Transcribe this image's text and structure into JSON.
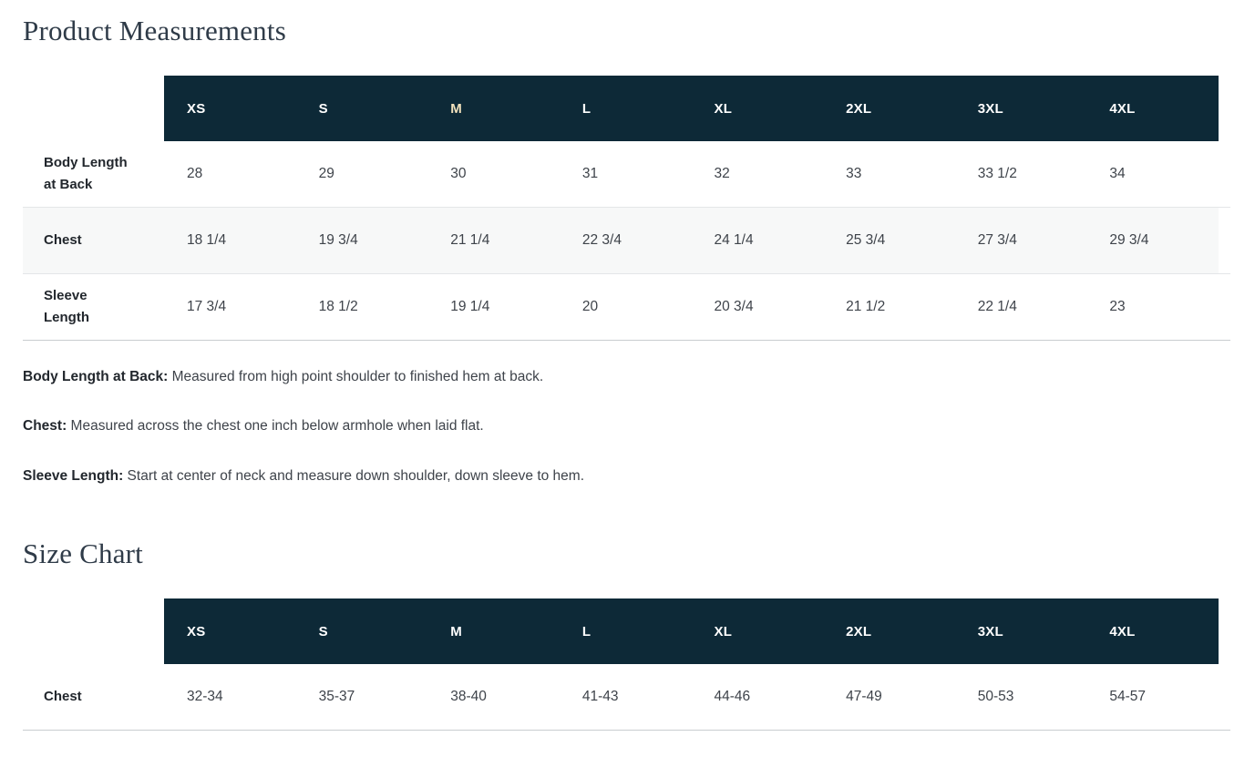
{
  "page": {
    "measurements_title": "Product Measurements",
    "size_chart_title": "Size Chart"
  },
  "measurements_table": {
    "columns": [
      "XS",
      "S",
      "M",
      "L",
      "XL",
      "2XL",
      "3XL",
      "4XL"
    ],
    "highlighted_column": "M",
    "rows": [
      {
        "label": "Body Length\nat Back",
        "values": [
          "28",
          "29",
          "30",
          "31",
          "32",
          "33",
          "33 1/2",
          "34"
        ]
      },
      {
        "label": "Chest",
        "values": [
          "18 1/4",
          "19 3/4",
          "21 1/4",
          "22 3/4",
          "24 1/4",
          "25 3/4",
          "27 3/4",
          "29 3/4"
        ]
      },
      {
        "label": "Sleeve\nLength",
        "values": [
          "17 3/4",
          "18 1/2",
          "19 1/4",
          "20",
          "20 3/4",
          "21 1/2",
          "22 1/4",
          "23"
        ]
      }
    ]
  },
  "definitions": [
    {
      "term": "Body Length at Back:",
      "text": " Measured from high point shoulder to finished hem at back."
    },
    {
      "term": "Chest:",
      "text": " Measured across the chest one inch below armhole when laid flat."
    },
    {
      "term": "Sleeve Length:",
      "text": " Start at center of neck and measure down shoulder, down sleeve to hem."
    }
  ],
  "size_chart_table": {
    "columns": [
      "XS",
      "S",
      "M",
      "L",
      "XL",
      "2XL",
      "3XL",
      "4XL"
    ],
    "highlighted_column": null,
    "rows": [
      {
        "label": "Chest",
        "values": [
          "32-34",
          "35-37",
          "38-40",
          "41-43",
          "44-46",
          "47-49",
          "50-53",
          "54-57"
        ]
      }
    ]
  },
  "colors": {
    "header_bg": "#0d2937",
    "header_text": "#ffffff",
    "highlight": "#f2e2bd",
    "stripe": "#f7f8f8",
    "border": "#e4e6e8",
    "border_strong": "#c9cdd0",
    "title": "#2f3b48",
    "text": "#3e434a",
    "label": "#22272d"
  }
}
